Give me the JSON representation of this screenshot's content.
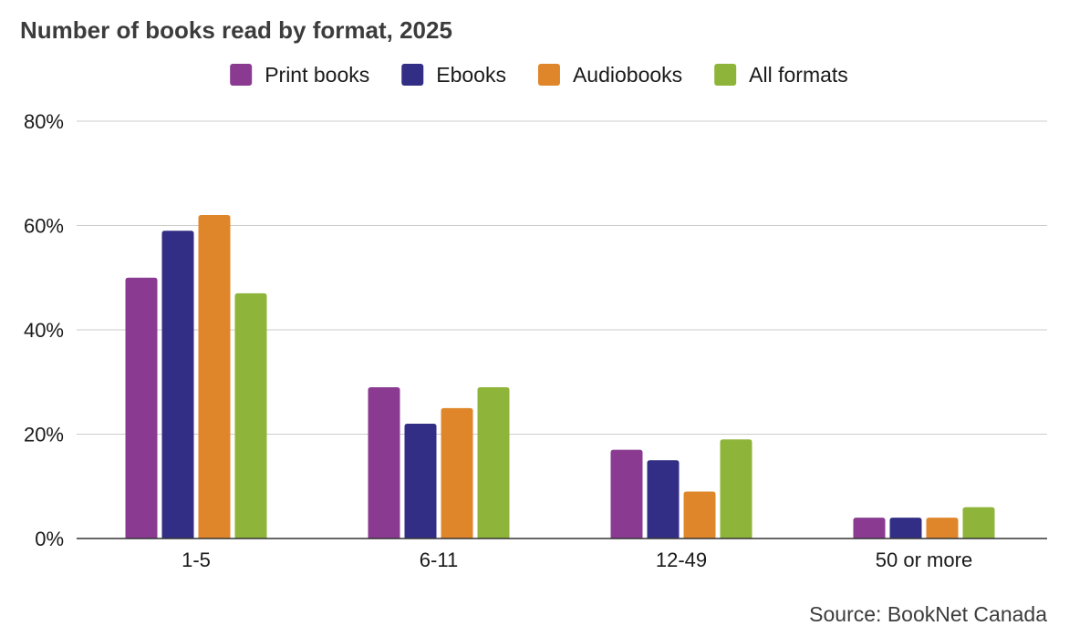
{
  "chart_data": {
    "type": "bar",
    "title": "Number of books read by format, 2025",
    "categories": [
      "1-5",
      "6-11",
      "12-49",
      "50 or more"
    ],
    "series": [
      {
        "name": "Print books",
        "color": "#8a3b91",
        "values": [
          50,
          29,
          17,
          4
        ]
      },
      {
        "name": "Ebooks",
        "color": "#332e85",
        "values": [
          59,
          22,
          15,
          4
        ]
      },
      {
        "name": "Audiobooks",
        "color": "#e0862a",
        "values": [
          62,
          25,
          9,
          4
        ]
      },
      {
        "name": "All formats",
        "color": "#8fb43a",
        "values": [
          47,
          29,
          19,
          6
        ]
      }
    ],
    "ylim": [
      0,
      80
    ],
    "yticks": [
      "0%",
      "20%",
      "40%",
      "60%",
      "80%"
    ],
    "ytick_values": [
      0,
      20,
      40,
      60,
      80
    ],
    "legend_position": "top-center",
    "grid": true,
    "source": "Source: BookNet Canada"
  }
}
